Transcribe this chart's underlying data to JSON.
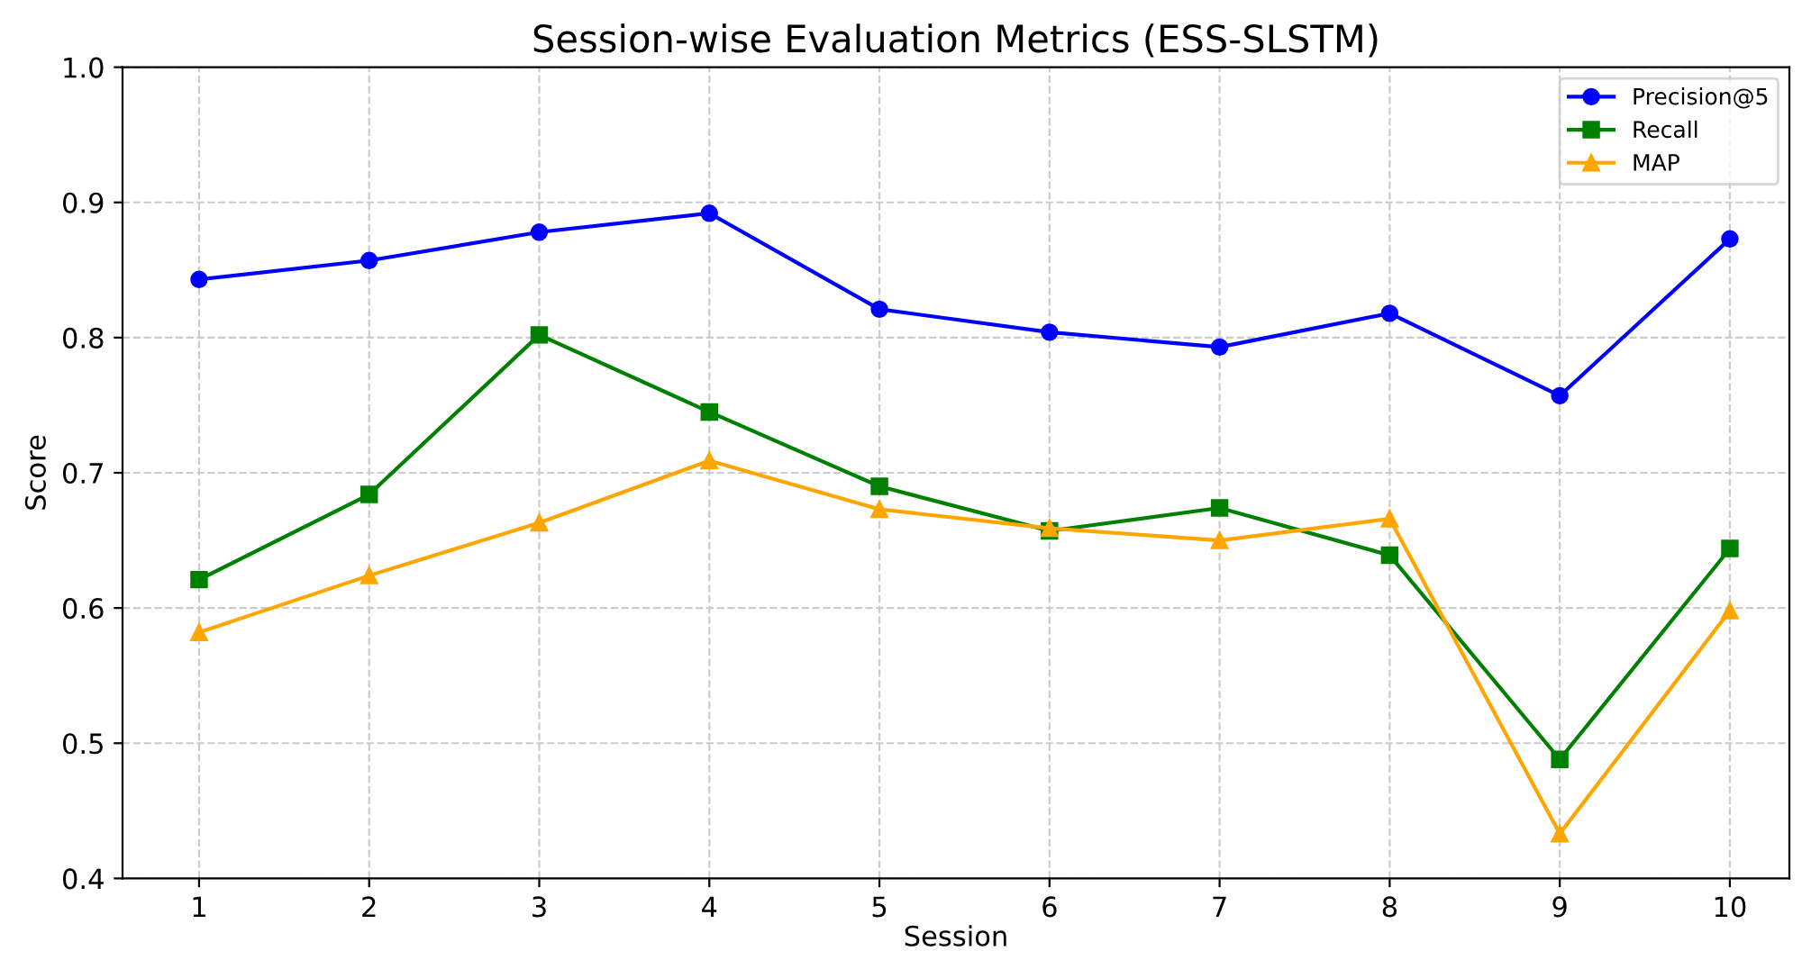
{
  "chart_data": {
    "type": "line",
    "title": "Session-wise Evaluation Metrics (ESS-SLSTM)",
    "xlabel": "Session",
    "ylabel": "Score",
    "x": [
      1,
      2,
      3,
      4,
      5,
      6,
      7,
      8,
      9,
      10
    ],
    "series": [
      {
        "name": "Precision@5",
        "color": "#0000ff",
        "marker": "circle",
        "values": [
          0.843,
          0.857,
          0.878,
          0.892,
          0.821,
          0.804,
          0.793,
          0.818,
          0.757,
          0.873
        ]
      },
      {
        "name": "Recall",
        "color": "#008000",
        "marker": "square",
        "values": [
          0.621,
          0.684,
          0.802,
          0.745,
          0.69,
          0.657,
          0.674,
          0.639,
          0.488,
          0.644
        ]
      },
      {
        "name": "MAP",
        "color": "#ffa500",
        "marker": "triangle",
        "values": [
          0.582,
          0.624,
          0.663,
          0.709,
          0.673,
          0.659,
          0.65,
          0.666,
          0.433,
          0.598
        ]
      }
    ],
    "xlim": [
      0.55,
      10.35
    ],
    "xticks": [
      1,
      2,
      3,
      4,
      5,
      6,
      7,
      8,
      9,
      10
    ],
    "ylim": [
      0.4,
      1.0
    ],
    "yticks": [
      0.4,
      0.5,
      0.6,
      0.7,
      0.8,
      0.9,
      {
        "value": 1.0,
        "label": "1.0"
      }
    ],
    "grid": true,
    "legend": "top right",
    "line_style": "solid"
  }
}
